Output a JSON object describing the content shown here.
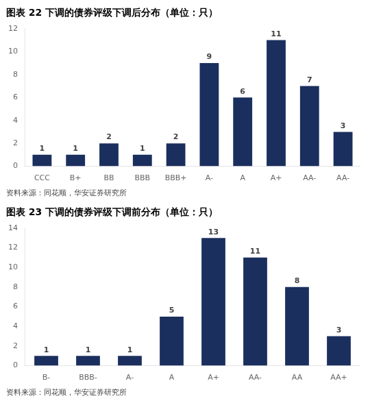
{
  "chart_data": [
    {
      "type": "bar",
      "title": "图表 22 下调的债券评级下调后分布（单位：只）",
      "categories": [
        "CCC",
        "B+",
        "BB",
        "BBB",
        "BBB+",
        "A-",
        "A",
        "A+",
        "AA-",
        "AA-"
      ],
      "values": [
        1,
        1,
        2,
        1,
        2,
        9,
        6,
        11,
        7,
        3
      ],
      "color": "#1b2f5e",
      "ylim": [
        0,
        12
      ],
      "yticks": [
        0,
        2,
        4,
        6,
        8,
        10,
        12
      ],
      "grid": false,
      "data_labels": true,
      "annotations": [
        "资料来源：同花顺，华安证券研究所"
      ]
    },
    {
      "type": "bar",
      "title": "图表 23 下调的债券评级下调前分布（单位：只）",
      "categories": [
        "B-",
        "BBB-",
        "A-",
        "A",
        "A+",
        "AA-",
        "AA",
        "AA+"
      ],
      "values": [
        1,
        1,
        1,
        5,
        13,
        11,
        8,
        3
      ],
      "color": "#1b2f5e",
      "ylim": [
        0,
        14
      ],
      "yticks": [
        0,
        2,
        4,
        6,
        8,
        10,
        12,
        14
      ],
      "grid": false,
      "data_labels": true,
      "annotations": [
        "资料来源：同花顺，华安证券研究所"
      ]
    }
  ]
}
